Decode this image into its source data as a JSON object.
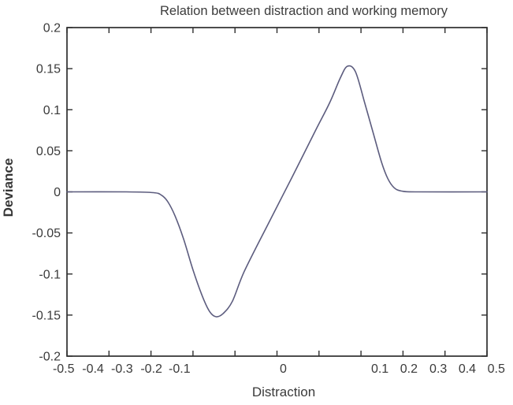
{
  "chart_data": {
    "type": "line",
    "title": "Relation between distraction and working memory",
    "xlabel": "Distraction",
    "ylabel": "Deviance",
    "xlim_labels": [
      -0.5,
      0.5
    ],
    "ylim": [
      -0.2,
      0.2
    ],
    "grid": false,
    "legend": "none",
    "box": true,
    "axis_color": "#2e2e2e",
    "tick_label_color": "#3a3a3a",
    "tick_font_size": 16,
    "x_tick_labels": [
      "-0.5",
      "-0.4",
      "-0.3",
      "-0.2",
      "-0.1",
      "0",
      "0.1",
      "0.2",
      "0.3",
      "0.4",
      "0.5"
    ],
    "x_tick_label_positions": [
      -0.008,
      0.062,
      0.131,
      0.201,
      0.268,
      0.515,
      0.745,
      0.814,
      0.884,
      0.953,
      1.022
    ],
    "x_tick_mark_positions": [
      0,
      0.1,
      0.2,
      0.3,
      0.4,
      0.5,
      0.6,
      0.7,
      0.8,
      0.9,
      1.0
    ],
    "y_tick_labels": [
      "0.2",
      "0.15",
      "0.1",
      "0.05",
      "0",
      "-0.05",
      "-0.1",
      "-0.15",
      "-0.2"
    ],
    "y_tick_values": [
      0.2,
      0.15,
      0.1,
      0.05,
      0,
      -0.05,
      -0.1,
      -0.15,
      -0.2
    ],
    "series": [
      {
        "name": "deviance-curve",
        "color": "#5c5c7e",
        "line_width": 1.6,
        "summary": "flat at 0, trough of -0.15 left of center, linear rise through 0, peak of 0.15 right of center, flat at 0",
        "points": [
          [
            0.0,
            0.0
          ],
          [
            0.141,
            0.0
          ],
          [
            0.206,
            -0.001
          ],
          [
            0.225,
            -0.004
          ],
          [
            0.24,
            -0.012
          ],
          [
            0.257,
            -0.029
          ],
          [
            0.278,
            -0.058
          ],
          [
            0.3,
            -0.095
          ],
          [
            0.323,
            -0.128
          ],
          [
            0.34,
            -0.146
          ],
          [
            0.355,
            -0.152
          ],
          [
            0.372,
            -0.148
          ],
          [
            0.394,
            -0.133
          ],
          [
            0.422,
            -0.097
          ],
          [
            0.478,
            -0.04
          ],
          [
            0.535,
            0.017
          ],
          [
            0.591,
            0.074
          ],
          [
            0.625,
            0.108
          ],
          [
            0.651,
            0.139
          ],
          [
            0.668,
            0.153
          ],
          [
            0.687,
            0.146
          ],
          [
            0.709,
            0.108
          ],
          [
            0.73,
            0.07
          ],
          [
            0.749,
            0.036
          ],
          [
            0.764,
            0.016
          ],
          [
            0.779,
            0.005
          ],
          [
            0.797,
            0.001
          ],
          [
            0.835,
            0.0
          ],
          [
            1.0,
            0.0
          ]
        ]
      }
    ]
  }
}
